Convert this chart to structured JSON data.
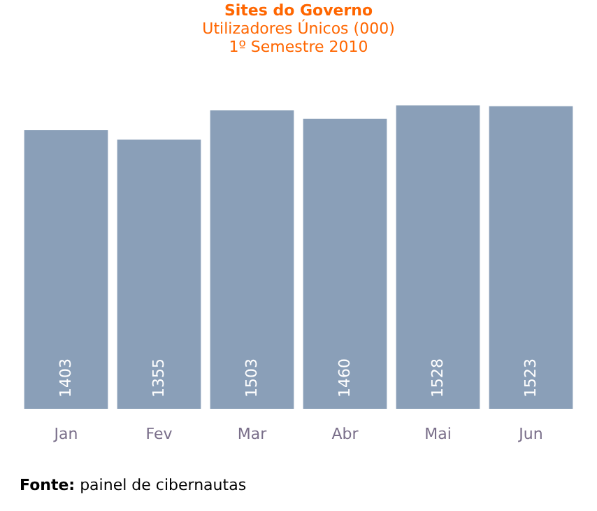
{
  "chart_data": {
    "type": "bar",
    "title": "Sites do Governo",
    "subtitle": "Utilizadores Únicos (000)\n1º Semestre 2010",
    "categories": [
      "Jan",
      "Fev",
      "Mar",
      "Abr",
      "Mai",
      "Jun"
    ],
    "values": [
      1403,
      1355,
      1503,
      1460,
      1528,
      1523
    ],
    "color": "#8a9fb8",
    "tick_labels": "x",
    "data_labels": true,
    "annotations": [
      "Fonte: painel de cibernautas"
    ]
  }
}
